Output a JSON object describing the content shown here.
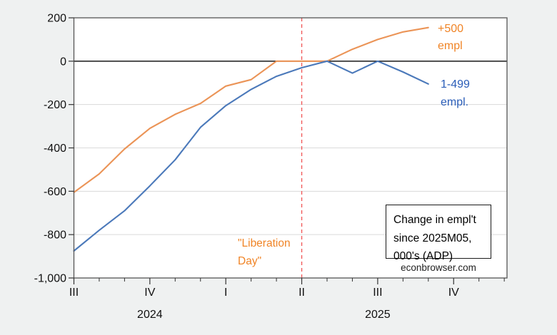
{
  "chart_data": {
    "type": "line",
    "source_note": "econbrowser.com",
    "title_box": [
      "Change in empl't",
      "since 2025M05,",
      "000's (ADP)"
    ],
    "x_months": [
      "2024M07",
      "2024M08",
      "2024M09",
      "2024M10",
      "2024M11",
      "2024M12",
      "2025M01",
      "2025M02",
      "2025M03",
      "2025M04",
      "2025M05",
      "2025M06",
      "2025M07",
      "2025M08",
      "2025M09"
    ],
    "series": [
      {
        "name": "+500 empl",
        "label_lines": [
          "+500",
          "empl"
        ],
        "color": "#eb9457",
        "label_color": "#f08426",
        "values": [
          -605,
          -520,
          -405,
          -310,
          -245,
          -195,
          -115,
          -85,
          0,
          0,
          0,
          55,
          100,
          135,
          155
        ]
      },
      {
        "name": "1-499 empl.",
        "label_lines": [
          "1-499",
          "empl."
        ],
        "color": "#4b79ba",
        "label_color": "#2a5db8",
        "values": [
          -875,
          -780,
          -690,
          -575,
          -455,
          -305,
          -205,
          -130,
          -70,
          -30,
          0,
          -55,
          0,
          -50,
          -105
        ]
      }
    ],
    "vline": {
      "at_month": "2025M04",
      "month_index": 9,
      "color": "#f05454",
      "label_lines": [
        "\"Liberation",
        "Day\""
      ],
      "label_color": "#f08426"
    },
    "y_axis": {
      "range": [
        -1000,
        200
      ],
      "tick_values": [
        200,
        0,
        -200,
        -400,
        -600,
        -800,
        -1000
      ],
      "tick_labels": [
        "200",
        "0",
        "-200",
        "-400",
        "-600",
        "-800",
        "-1,000"
      ],
      "zero_line": true,
      "grid": true
    },
    "x_axis": {
      "quarter_labels": [
        "III",
        "IV",
        "I",
        "II",
        "III",
        "IV"
      ],
      "quarter_month_indices": [
        0,
        3,
        6,
        9,
        12,
        15
      ],
      "minor_month_indices": [
        1,
        2,
        4,
        5,
        7,
        8,
        10,
        11,
        13,
        14,
        16,
        17
      ],
      "year_labels": [
        "2024",
        "2025"
      ],
      "year_center_month_indices": [
        3,
        12
      ]
    },
    "legend_position": "inside-bottom-right",
    "plot_background": "#ffffff"
  }
}
